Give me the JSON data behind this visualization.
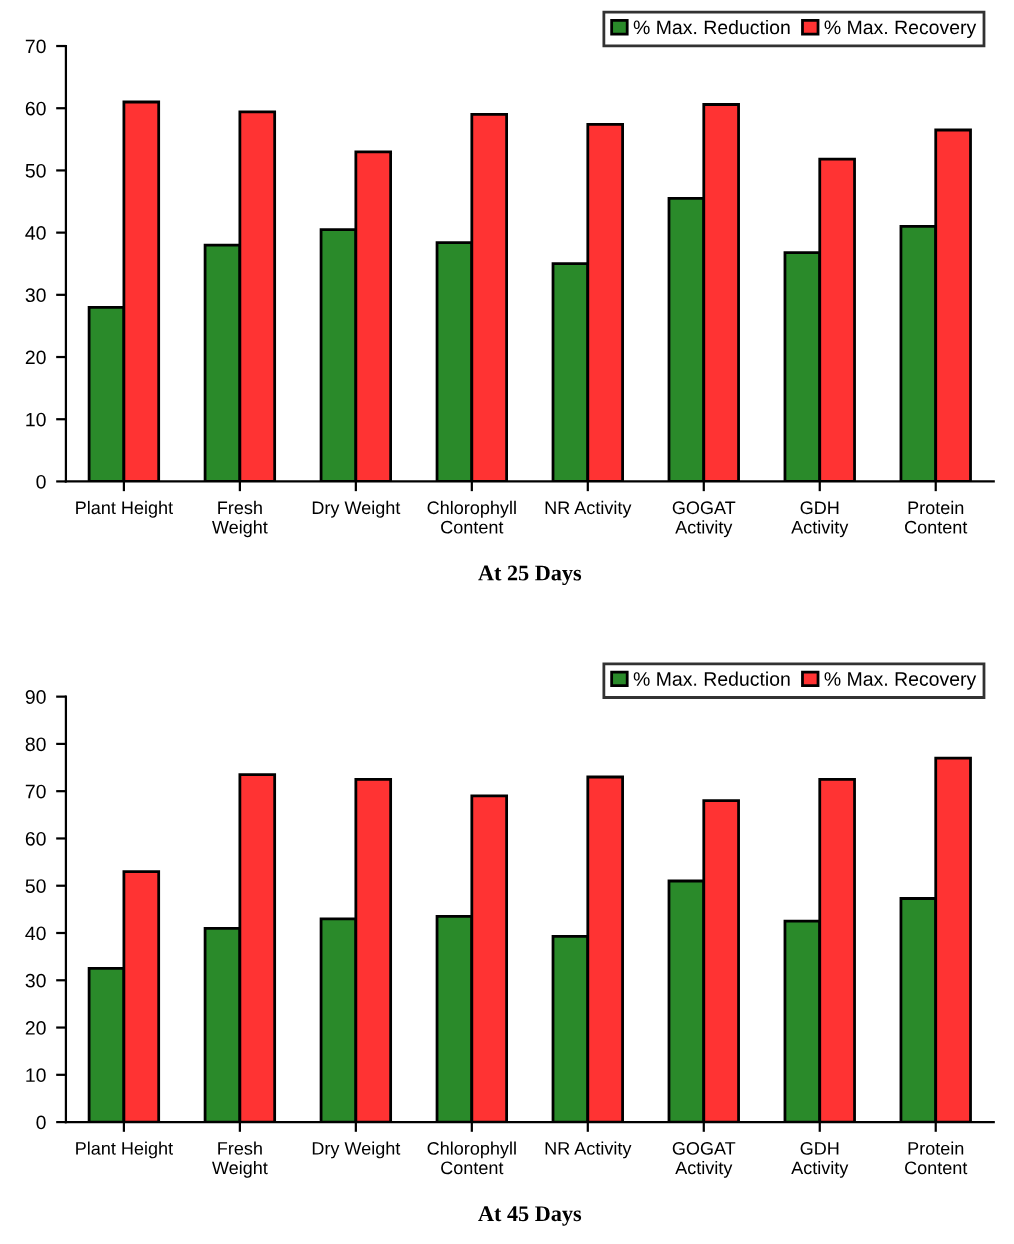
{
  "chart_data": [
    {
      "type": "bar",
      "title": "At 25 Days",
      "categories": [
        "Plant Height",
        "Fresh\nWeight",
        "Dry Weight",
        "Chlorophyll\nContent",
        "NR Activity",
        "GOGAT\nActivity",
        "GDH\nActivity",
        "Protein\nContent"
      ],
      "series": [
        {
          "name": "% Max. Reduction",
          "color": "#2a8a2a",
          "values": [
            28,
            38,
            40.5,
            38.4,
            35,
            45.5,
            36.8,
            41
          ]
        },
        {
          "name": "% Max. Recovery",
          "color": "#ff3333",
          "values": [
            61,
            59.4,
            53,
            59,
            57.4,
            60.6,
            51.8,
            56.5
          ]
        }
      ],
      "ylim": [
        0,
        70
      ],
      "yticks": [
        0,
        10,
        20,
        30,
        40,
        50,
        60,
        70
      ],
      "grid": false,
      "legend": "top right"
    },
    {
      "type": "bar",
      "title": "At 45 Days",
      "categories": [
        "Plant Height",
        "Fresh\nWeight",
        "Dry Weight",
        "Chlorophyll\nContent",
        "NR Activity",
        "GOGAT\nActivity",
        "GDH\nActivity",
        "Protein\nContent"
      ],
      "series": [
        {
          "name": "% Max. Reduction",
          "color": "#2a8a2a",
          "values": [
            32.5,
            41,
            43,
            43.5,
            39.3,
            51,
            42.5,
            47.3
          ]
        },
        {
          "name": "% Max. Recovery",
          "color": "#ff3333",
          "values": [
            53,
            73.5,
            72.5,
            69,
            73,
            68,
            72.5,
            77
          ]
        }
      ],
      "ylim": [
        0,
        90
      ],
      "yticks": [
        0,
        10,
        20,
        30,
        40,
        50,
        60,
        70,
        80,
        90
      ],
      "grid": false,
      "legend": "top right"
    }
  ]
}
